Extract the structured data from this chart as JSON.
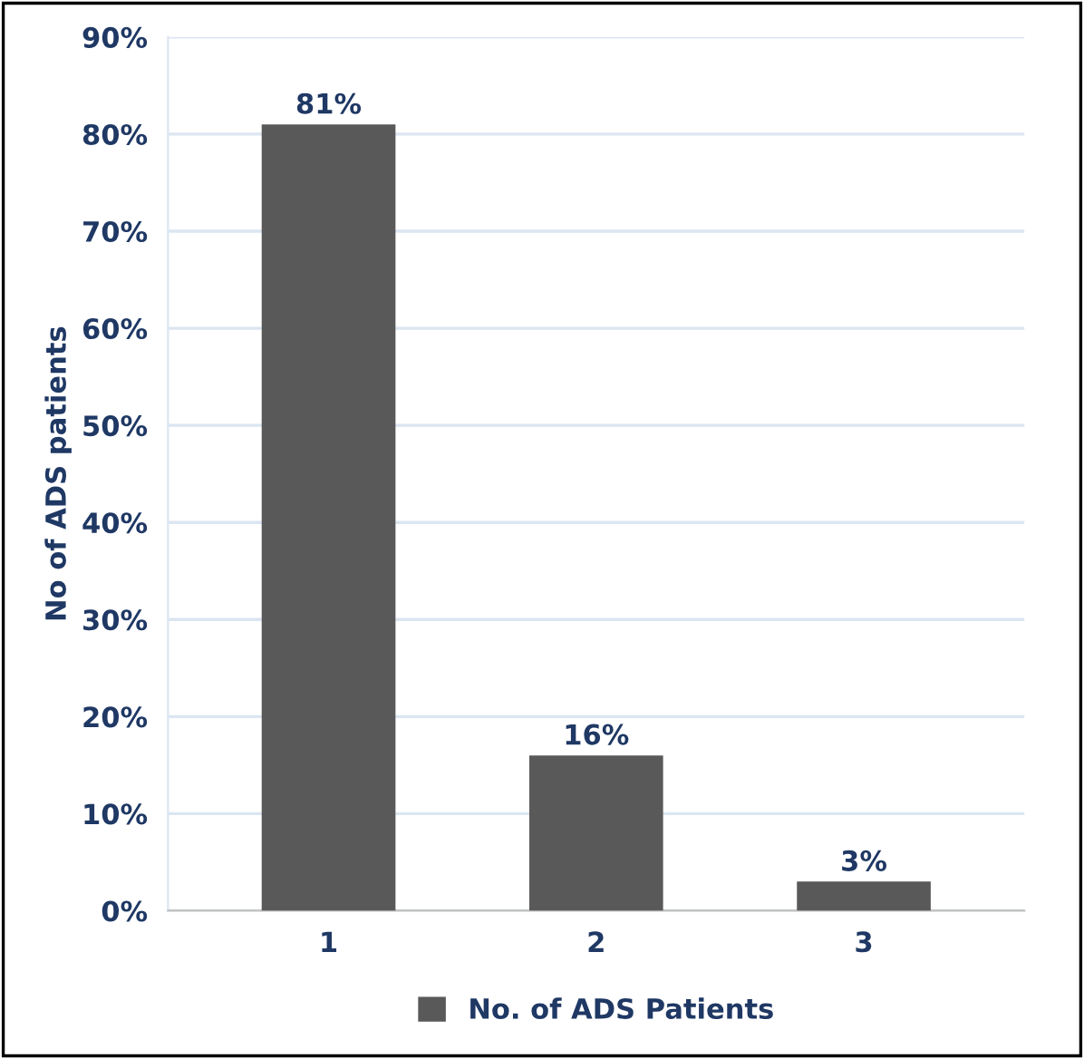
{
  "chart_data": {
    "type": "bar",
    "ylabel": "No of ADS patients",
    "categories": [
      "1",
      "2",
      "3"
    ],
    "series": [
      {
        "name": "No. of ADS Patients",
        "color": "#595959",
        "values": [
          81,
          16,
          3
        ],
        "value_labels": [
          "81%",
          "16%",
          "3%"
        ]
      }
    ],
    "ylim": [
      0,
      90
    ],
    "yticks": [
      {
        "value": 0,
        "label": "0%"
      },
      {
        "value": 10,
        "label": "10%"
      },
      {
        "value": 20,
        "label": "20%"
      },
      {
        "value": 30,
        "label": "30%"
      },
      {
        "value": 40,
        "label": "40%"
      },
      {
        "value": 50,
        "label": "50%"
      },
      {
        "value": 60,
        "label": "60%"
      },
      {
        "value": 70,
        "label": "70%"
      },
      {
        "value": 80,
        "label": "80%"
      },
      {
        "value": 90,
        "label": "90%"
      }
    ],
    "grid": "y",
    "legend": "bottom"
  }
}
